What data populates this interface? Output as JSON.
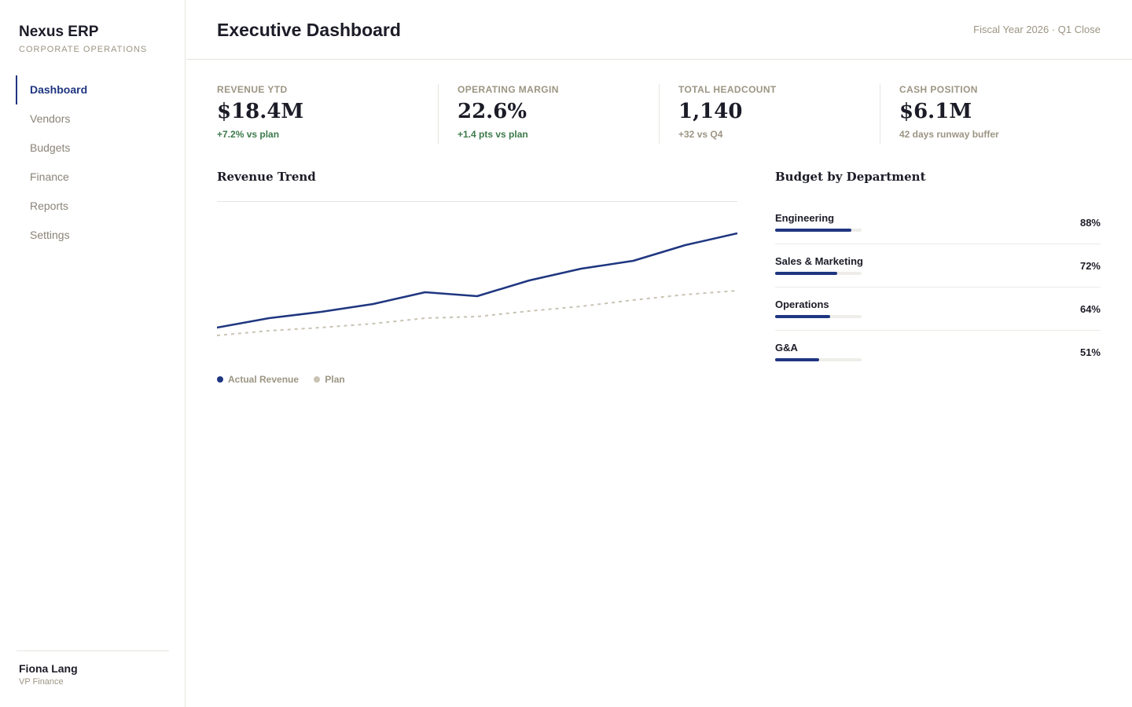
{
  "app": {
    "name": "Nexus ERP",
    "subtitle": "CORPORATE OPERATIONS"
  },
  "sidebar": {
    "items": [
      {
        "label": "Dashboard",
        "active": true
      },
      {
        "label": "Vendors"
      },
      {
        "label": "Budgets"
      },
      {
        "label": "Finance"
      },
      {
        "label": "Reports"
      },
      {
        "label": "Settings"
      }
    ],
    "user": {
      "name": "Fiona Lang",
      "role": "VP Finance"
    }
  },
  "header": {
    "title": "Executive Dashboard",
    "period": "Fiscal Year 2026 · Q1 Close"
  },
  "kpis": [
    {
      "label": "REVENUE YTD",
      "value": "$18.4M",
      "delta": "+7.2% vs plan",
      "tone": "pos"
    },
    {
      "label": "OPERATING MARGIN",
      "value": "22.6%",
      "delta": "+1.4 pts vs plan",
      "tone": "pos"
    },
    {
      "label": "TOTAL HEADCOUNT",
      "value": "1,140",
      "delta": "+32 vs Q4",
      "tone": "neutral"
    },
    {
      "label": "CASH POSITION",
      "value": "$6.1M",
      "delta": "42 days runway buffer",
      "tone": "neutral"
    }
  ],
  "revenue_trend": {
    "title": "Revenue Trend",
    "legend": [
      "Actual Revenue",
      "Plan"
    ]
  },
  "chart_data": {
    "type": "line",
    "title": "Revenue Trend",
    "x": [
      1,
      2,
      3,
      4,
      5,
      6,
      7,
      8,
      9,
      10,
      11
    ],
    "ylim": [
      0,
      100
    ],
    "series": [
      {
        "name": "Actual Revenue",
        "color": "#1f3680",
        "style": "solid",
        "values": [
          20,
          26,
          30,
          35,
          42.5,
          40,
          50,
          57.5,
          62.5,
          72.5,
          80
        ]
      },
      {
        "name": "Plan",
        "color": "#c9c3b3",
        "style": "dashed",
        "values": [
          15,
          18,
          20,
          22.5,
          26,
          27,
          30.5,
          33.5,
          37.5,
          41,
          43.5
        ]
      }
    ],
    "grid": false,
    "legend": "bottom-left"
  },
  "budget": {
    "title": "Budget by Department",
    "departments": [
      {
        "name": "Engineering",
        "pct_label": "88%",
        "pct": 0.88
      },
      {
        "name": "Sales & Marketing",
        "pct_label": "72%",
        "pct": 0.72
      },
      {
        "name": "Operations",
        "pct_label": "64%",
        "pct": 0.64
      },
      {
        "name": "G&A",
        "pct_label": "51%",
        "pct": 0.51
      }
    ],
    "bar_color": "#1f3680"
  },
  "colors": {
    "accent": "#1f3680",
    "positive": "#3d7a4a",
    "muted": "#9c9583"
  }
}
